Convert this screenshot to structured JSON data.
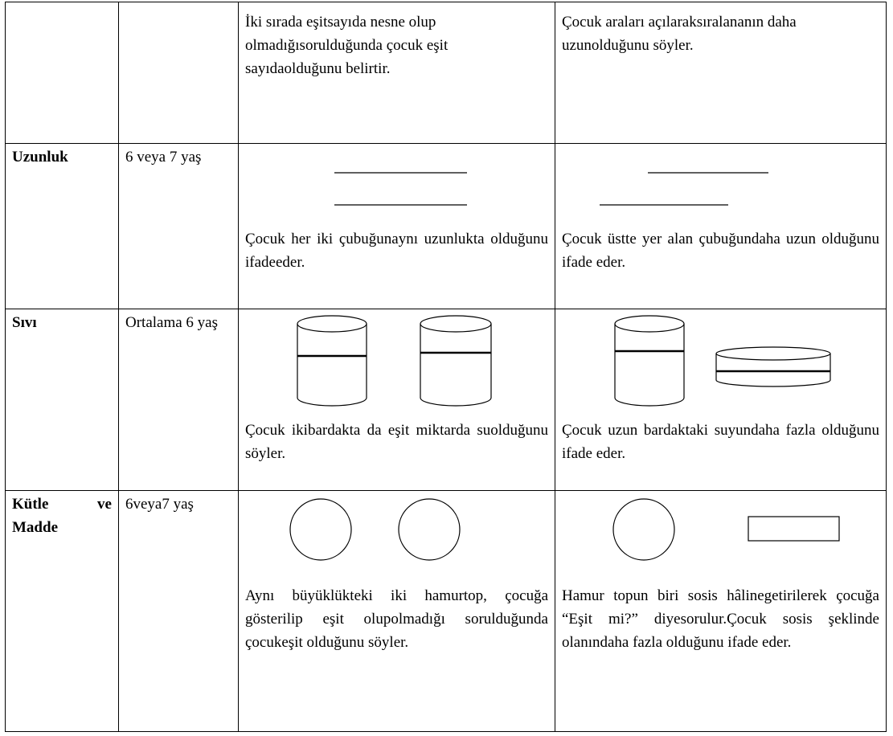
{
  "table": {
    "rows": [
      {
        "before": "İki sırada eşitsayıda nesne olup olmadığısorulduğunda çocuk eşit sayıdaolduğunu belirtir.",
        "after": "Çocuk araları açılaraksıralananın daha uzunolduğunu söyler."
      },
      {
        "label": "Uzunluk",
        "age": "6 veya 7 yaş",
        "before": "Çocuk her iki çubuğunaynı uzunlukta olduğunu ifadeeder.",
        "after": "Çocuk üstte yer alan çubuğundaha uzun olduğunu ifade eder."
      },
      {
        "label": "Sıvı",
        "age": "Ortalama 6 yaş",
        "before": "Çocuk ikibardakta da eşit miktarda suolduğunu söyler.",
        "after": "Çocuk uzun bardaktaki suyundaha fazla olduğunu ifade eder."
      },
      {
        "label": "Kütle ve Madde",
        "age": "6veya7 yaş",
        "before": "Aynı büyüklükteki iki hamurtop, çocuğa gösterilip eşit olupolmadığı sorulduğunda çocukeşit olduğunu söyler.",
        "after": "Hamur topun biri sosis hâlinegetirilerek çocuğa “Eşit mi?” diyesorulur.Çocuk sosis şeklinde olanındaha fazla olduğunu ifade eder."
      }
    ]
  }
}
